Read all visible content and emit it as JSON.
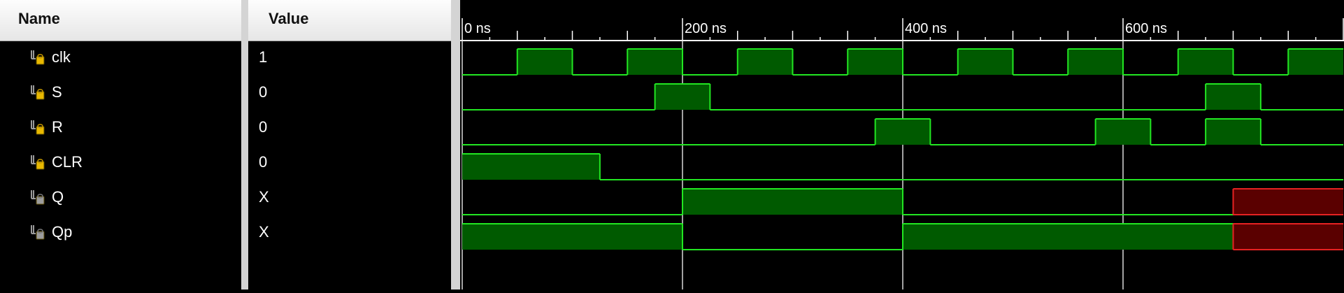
{
  "headers": {
    "name": "Name",
    "value": "Value"
  },
  "signals": [
    {
      "name": "clk",
      "value": "1",
      "type": "input"
    },
    {
      "name": "S",
      "value": "0",
      "type": "input"
    },
    {
      "name": "R",
      "value": "0",
      "type": "input"
    },
    {
      "name": "CLR",
      "value": "0",
      "type": "input"
    },
    {
      "name": "Q",
      "value": "X",
      "type": "output"
    },
    {
      "name": "Qp",
      "value": "X",
      "type": "output"
    }
  ],
  "timeline": {
    "ns_per_major": 200,
    "major_labels": [
      "0 ns",
      "200 ns",
      "400 ns",
      "600 ns"
    ]
  },
  "waveforms": [
    {
      "signal": "clk",
      "segments": [
        [
          0,
          50,
          0
        ],
        [
          50,
          100,
          1
        ],
        [
          100,
          150,
          0
        ],
        [
          150,
          200,
          1
        ],
        [
          200,
          250,
          0
        ],
        [
          250,
          300,
          1
        ],
        [
          300,
          350,
          0
        ],
        [
          350,
          400,
          1
        ],
        [
          400,
          450,
          0
        ],
        [
          450,
          500,
          1
        ],
        [
          500,
          550,
          0
        ],
        [
          550,
          600,
          1
        ],
        [
          600,
          650,
          0
        ],
        [
          650,
          700,
          1
        ],
        [
          700,
          750,
          0
        ],
        [
          750,
          800,
          1
        ]
      ]
    },
    {
      "signal": "S",
      "segments": [
        [
          0,
          175,
          0
        ],
        [
          175,
          225,
          1
        ],
        [
          225,
          675,
          0
        ],
        [
          675,
          725,
          1
        ],
        [
          725,
          800,
          0
        ]
      ]
    },
    {
      "signal": "R",
      "segments": [
        [
          0,
          375,
          0
        ],
        [
          375,
          425,
          1
        ],
        [
          425,
          575,
          0
        ],
        [
          575,
          625,
          1
        ],
        [
          625,
          675,
          0
        ],
        [
          675,
          725,
          1
        ],
        [
          725,
          800,
          0
        ]
      ]
    },
    {
      "signal": "CLR",
      "segments": [
        [
          0,
          125,
          1
        ],
        [
          125,
          800,
          0
        ]
      ]
    },
    {
      "signal": "Q",
      "segments": [
        [
          0,
          200,
          0
        ],
        [
          200,
          400,
          1
        ],
        [
          400,
          700,
          0
        ],
        [
          700,
          800,
          "X"
        ]
      ]
    },
    {
      "signal": "Qp",
      "segments": [
        [
          0,
          200,
          1
        ],
        [
          200,
          400,
          0
        ],
        [
          400,
          700,
          1
        ],
        [
          700,
          800,
          "X"
        ]
      ]
    }
  ],
  "colors": {
    "background": "#000000",
    "wave": "#22e622",
    "wave_fill": "#005a00",
    "unknown": "#e62222",
    "unknown_fill": "#5a0000",
    "ruler": "#ffffff",
    "gridline": "#d9d9d9"
  }
}
